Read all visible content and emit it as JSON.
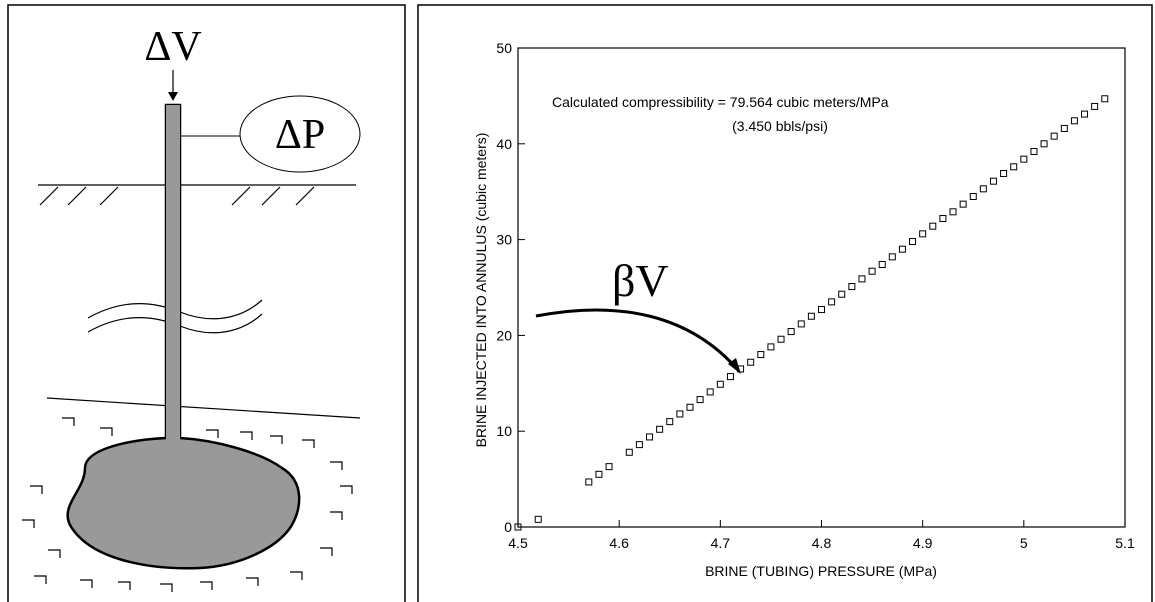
{
  "diagram": {
    "delta_v_label": "ΔV",
    "delta_p_label": "ΔP"
  },
  "chart_data": {
    "type": "scatter",
    "annotations": [
      "Calculated compressibility = 79.564 cubic meters/MPa",
      "(3.450 bbls/psi)",
      "βV"
    ],
    "x_label": "BRINE (TUBING) PRESSURE (MPa)",
    "y_label": "BRINE INJECTED INTO ANNULUS (cubic meters)",
    "xlim": [
      4.5,
      5.1
    ],
    "ylim": [
      0,
      50
    ],
    "xticks": [
      4.5,
      4.6,
      4.7,
      4.8,
      4.9,
      5,
      5.1
    ],
    "yticks": [
      0,
      10,
      20,
      30,
      40,
      50
    ],
    "color": "#000000",
    "x": [
      4.5,
      4.52,
      4.57,
      4.58,
      4.59,
      4.61,
      4.62,
      4.63,
      4.64,
      4.65,
      4.66,
      4.67,
      4.68,
      4.69,
      4.7,
      4.71,
      4.72,
      4.73,
      4.74,
      4.75,
      4.76,
      4.77,
      4.78,
      4.79,
      4.8,
      4.81,
      4.82,
      4.83,
      4.84,
      4.85,
      4.86,
      4.87,
      4.88,
      4.89,
      4.9,
      4.91,
      4.92,
      4.93,
      4.94,
      4.95,
      4.96,
      4.97,
      4.98,
      4.99,
      5.0,
      5.01,
      5.02,
      5.03,
      5.04,
      5.05,
      5.06,
      5.07,
      5.08
    ],
    "values": [
      0,
      0.8,
      4.7,
      5.5,
      6.3,
      7.8,
      8.6,
      9.4,
      10.2,
      11.0,
      11.8,
      12.5,
      13.3,
      14.1,
      14.9,
      15.7,
      16.5,
      17.2,
      18.0,
      18.8,
      19.6,
      20.4,
      21.2,
      22.0,
      22.7,
      23.5,
      24.3,
      25.1,
      25.9,
      26.7,
      27.4,
      28.2,
      29.0,
      29.8,
      30.6,
      31.4,
      32.2,
      32.9,
      33.7,
      34.5,
      35.3,
      36.1,
      36.9,
      37.6,
      38.4,
      39.2,
      40.0,
      40.8,
      41.6,
      42.4,
      43.1,
      43.9,
      44.7
    ]
  }
}
